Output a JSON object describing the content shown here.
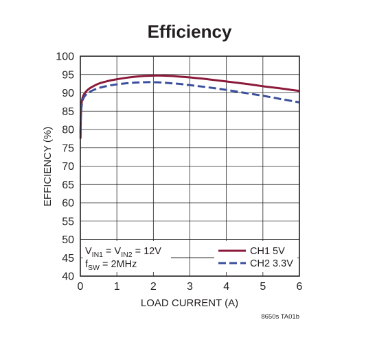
{
  "colors": {
    "ch1": "#8b1a3a",
    "ch2": "#3a4f9c",
    "grid": "#231f20",
    "text": "#231f20"
  },
  "chart_data": {
    "type": "line",
    "title": "Efficiency",
    "xlabel": "LOAD CURRENT (A)",
    "ylabel": "EFFICIENCY (%)",
    "xlim": [
      0,
      6
    ],
    "ylim": [
      40,
      100
    ],
    "xticks": [
      "0",
      "1",
      "2",
      "3",
      "4",
      "5",
      "6"
    ],
    "yticks": [
      "40",
      "45",
      "50",
      "55",
      "60",
      "65",
      "70",
      "75",
      "80",
      "85",
      "90",
      "95",
      "100"
    ],
    "grid": true,
    "legend": "bottom-right",
    "series": [
      {
        "name": "CH1 5V",
        "style": "solid",
        "x": [
          0.005,
          0.01,
          0.02,
          0.03,
          0.05,
          0.08,
          0.12,
          0.2,
          0.3,
          0.5,
          0.75,
          1.0,
          1.25,
          1.5,
          1.75,
          2.0,
          2.25,
          2.5,
          2.75,
          3.0,
          3.5,
          4.0,
          4.5,
          5.0,
          5.5,
          6.0
        ],
        "y": [
          77.5,
          82.0,
          85.0,
          86.7,
          88.2,
          89.2,
          89.9,
          90.8,
          91.5,
          92.5,
          93.2,
          93.7,
          94.1,
          94.4,
          94.6,
          94.7,
          94.7,
          94.6,
          94.4,
          94.2,
          93.7,
          93.1,
          92.5,
          91.8,
          91.2,
          90.5
        ]
      },
      {
        "name": "CH2 3.3V",
        "style": "dashed",
        "x": [
          0.005,
          0.01,
          0.02,
          0.03,
          0.05,
          0.08,
          0.12,
          0.2,
          0.3,
          0.5,
          0.75,
          1.0,
          1.25,
          1.5,
          1.75,
          2.0,
          2.25,
          2.5,
          2.75,
          3.0,
          3.5,
          4.0,
          4.5,
          5.0,
          5.5,
          6.0
        ],
        "y": [
          79.0,
          82.0,
          84.5,
          86.0,
          87.4,
          88.4,
          89.1,
          89.9,
          90.5,
          91.3,
          91.9,
          92.3,
          92.6,
          92.8,
          92.9,
          92.9,
          92.8,
          92.6,
          92.4,
          92.1,
          91.5,
          90.8,
          90.0,
          89.2,
          88.3,
          87.4
        ]
      }
    ],
    "annotations": {
      "condition_line1": {
        "v": "V",
        "sub1": "IN1",
        "mid": " = V",
        "sub2": "IN2",
        "end": " = 12V"
      },
      "condition_line2": {
        "f": "f",
        "sub": "SW",
        "end": " = 2MHz"
      }
    },
    "figure_code": "8650s TA01b"
  }
}
